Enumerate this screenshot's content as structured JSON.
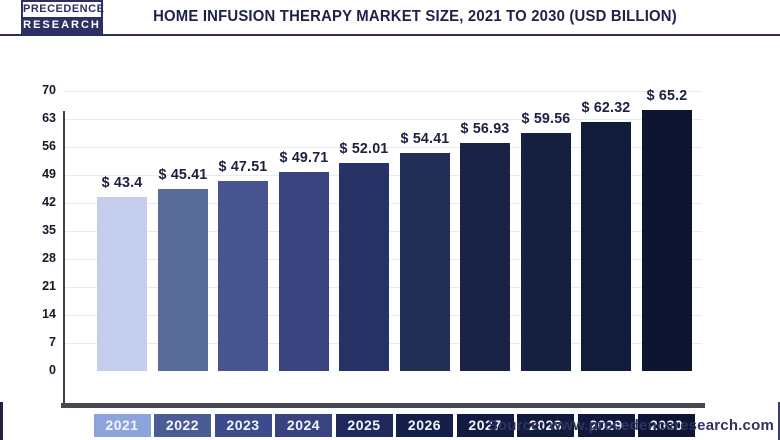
{
  "header": {
    "logo_line1": "PRECEDENCE",
    "logo_line2": "RESEARCH",
    "title": "HOME INFUSION THERAPY MARKET SIZE, 2021 TO 2030 (USD BILLION)"
  },
  "chart_data": {
    "type": "bar",
    "title": "Home Infusion Therapy Market Size, 2021 to 2030 (USD Billion)",
    "categories": [
      "2021",
      "2022",
      "2023",
      "2024",
      "2025",
      "2026",
      "2027",
      "2028",
      "2029",
      "2030"
    ],
    "values": [
      43.4,
      45.41,
      47.51,
      49.71,
      52.01,
      54.41,
      56.93,
      59.56,
      62.32,
      65.2
    ],
    "value_labels": [
      "$ 43.4",
      "$ 45.41",
      "$ 47.51",
      "$ 49.71",
      "$ 52.01",
      "$ 54.41",
      "$ 56.93",
      "$ 59.56",
      "$ 62.32",
      "$ 65.2"
    ],
    "xlabel": "",
    "ylabel": "",
    "ylim": [
      0,
      70
    ],
    "yticks": [
      0,
      7,
      14,
      21,
      28,
      35,
      42,
      49,
      56,
      63,
      70
    ],
    "grid": true,
    "legend": "none",
    "bar_colors": [
      "#c5cfed",
      "#5a6c9a",
      "#475490",
      "#39437e",
      "#273267",
      "#232e55",
      "#1a2345",
      "#151f3f",
      "#111b3a",
      "#0d1531"
    ],
    "chip_colors": [
      "#8ca4d9",
      "#4a5c94",
      "#3d4a8c",
      "#39437f",
      "#20295c",
      "#14204a",
      "#121c42",
      "#101c3e",
      "#0e193b",
      "#0c1534"
    ]
  },
  "footer": {
    "source": "Source: www.precedenceresearch.com"
  },
  "colors": {
    "title_text": "#1e2247",
    "header_divider": "#2b2e64",
    "axis": "#3f3f49",
    "baseline": "#47474f",
    "gridline": "#ebebeb",
    "logo_navy": "#2d3065",
    "source_text": "#32315f"
  }
}
